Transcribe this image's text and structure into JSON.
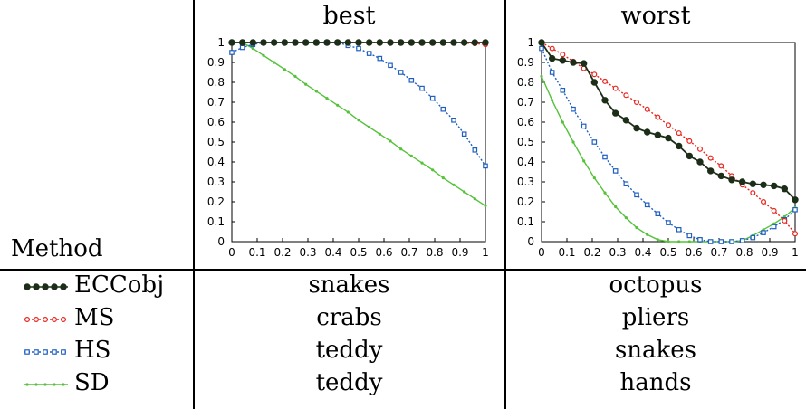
{
  "table": {
    "header_best": "best",
    "header_worst": "worst",
    "method_header": "Method"
  },
  "rows": [
    {
      "method": "ECCobj",
      "best": "snakes",
      "worst": "octopus",
      "color": "#1d2e18",
      "marker": "circle-filled",
      "dash": "solid"
    },
    {
      "method": "MS",
      "best": "crabs",
      "worst": "pliers",
      "color": "#e8251c",
      "marker": "circle-open",
      "dash": "dotted"
    },
    {
      "method": "HS",
      "best": "teddy",
      "worst": "snakes",
      "color": "#1f5fbf",
      "marker": "square-open",
      "dash": "dotted"
    },
    {
      "method": "SD",
      "best": "teddy",
      "worst": "hands",
      "color": "#55c23a",
      "marker": "dot",
      "dash": "solid"
    }
  ],
  "chart_data": [
    {
      "type": "line",
      "title": "best",
      "xlim": [
        0,
        1
      ],
      "ylim": [
        0,
        1
      ],
      "xticks": [
        "0",
        "0.1",
        "0.2",
        "0.3",
        "0.4",
        "0.5",
        "0.6",
        "0.7",
        "0.8",
        "0.9",
        "1"
      ],
      "yticks": [
        "0",
        "0.1",
        "0.2",
        "0.3",
        "0.4",
        "0.5",
        "0.6",
        "0.7",
        "0.8",
        "0.9",
        "1"
      ],
      "x": [
        0,
        0.0417,
        0.0833,
        0.125,
        0.1667,
        0.2083,
        0.25,
        0.2917,
        0.3333,
        0.375,
        0.4167,
        0.4583,
        0.5,
        0.5417,
        0.5833,
        0.625,
        0.6667,
        0.7083,
        0.75,
        0.7917,
        0.8333,
        0.875,
        0.9167,
        0.9583,
        1
      ],
      "series": [
        {
          "name": "ECCobj",
          "values": [
            1,
            1,
            1,
            1,
            1,
            1,
            1,
            1,
            1,
            1,
            1,
            1,
            1,
            1,
            1,
            1,
            1,
            1,
            1,
            1,
            1,
            1,
            1,
            1,
            1
          ]
        },
        {
          "name": "MS",
          "values": [
            1,
            1,
            1,
            1,
            1,
            1,
            1,
            1,
            1,
            1,
            1,
            1,
            1,
            1,
            1,
            1,
            1,
            1,
            1,
            1,
            1,
            1,
            0.997,
            0.995,
            0.99
          ]
        },
        {
          "name": "HS",
          "values": [
            0.95,
            0.975,
            0.99,
            1,
            1,
            1,
            1,
            1,
            1,
            1,
            1,
            0.985,
            0.97,
            0.945,
            0.92,
            0.885,
            0.85,
            0.81,
            0.77,
            0.72,
            0.665,
            0.61,
            0.54,
            0.46,
            0.38
          ]
        },
        {
          "name": "SD",
          "values": [
            1,
            1,
            0.97,
            0.935,
            0.9,
            0.865,
            0.83,
            0.79,
            0.755,
            0.72,
            0.685,
            0.65,
            0.61,
            0.575,
            0.54,
            0.505,
            0.465,
            0.43,
            0.395,
            0.36,
            0.32,
            0.285,
            0.25,
            0.215,
            0.18
          ]
        }
      ]
    },
    {
      "type": "line",
      "title": "worst",
      "xlim": [
        0,
        1
      ],
      "ylim": [
        0,
        1
      ],
      "xticks": [
        "0",
        "0.1",
        "0.2",
        "0.3",
        "0.4",
        "0.5",
        "0.6",
        "0.7",
        "0.8",
        "0.9",
        "1"
      ],
      "yticks": [
        "0",
        "0.1",
        "0.2",
        "0.3",
        "0.4",
        "0.5",
        "0.6",
        "0.7",
        "0.8",
        "0.9",
        "1"
      ],
      "x": [
        0,
        0.0417,
        0.0833,
        0.125,
        0.1667,
        0.2083,
        0.25,
        0.2917,
        0.3333,
        0.375,
        0.4167,
        0.4583,
        0.5,
        0.5417,
        0.5833,
        0.625,
        0.6667,
        0.7083,
        0.75,
        0.7917,
        0.8333,
        0.875,
        0.9167,
        0.9583,
        1
      ],
      "series": [
        {
          "name": "ECCobj",
          "values": [
            1,
            0.92,
            0.91,
            0.9,
            0.895,
            0.8,
            0.71,
            0.645,
            0.61,
            0.57,
            0.55,
            0.535,
            0.52,
            0.48,
            0.43,
            0.4,
            0.355,
            0.33,
            0.31,
            0.3,
            0.29,
            0.285,
            0.28,
            0.265,
            0.21
          ]
        },
        {
          "name": "MS",
          "values": [
            1,
            0.97,
            0.94,
            0.905,
            0.87,
            0.84,
            0.805,
            0.77,
            0.735,
            0.7,
            0.665,
            0.625,
            0.585,
            0.545,
            0.505,
            0.465,
            0.42,
            0.38,
            0.33,
            0.285,
            0.245,
            0.2,
            0.155,
            0.105,
            0.04
          ]
        },
        {
          "name": "HS",
          "values": [
            0.97,
            0.85,
            0.76,
            0.665,
            0.58,
            0.5,
            0.425,
            0.355,
            0.29,
            0.235,
            0.185,
            0.14,
            0.095,
            0.06,
            0.03,
            0.01,
            0,
            0,
            0,
            0.005,
            0.02,
            0.045,
            0.075,
            0.11,
            0.16
          ]
        },
        {
          "name": "SD",
          "values": [
            0.83,
            0.71,
            0.6,
            0.5,
            0.405,
            0.32,
            0.245,
            0.175,
            0.12,
            0.07,
            0.035,
            0.01,
            0,
            0,
            0,
            0,
            0,
            0,
            0,
            0.005,
            0.03,
            0.06,
            0.09,
            0.125,
            0.17
          ]
        }
      ]
    }
  ]
}
